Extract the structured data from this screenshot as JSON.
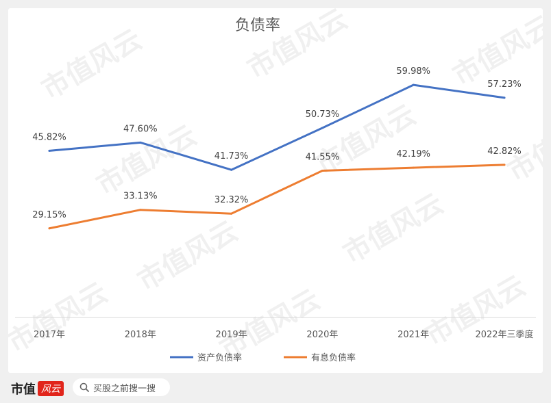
{
  "chart_data": {
    "type": "line",
    "title": "负债率",
    "categories": [
      "2017年",
      "2018年",
      "2019年",
      "2020年",
      "2021年",
      "2022年三季度"
    ],
    "series": [
      {
        "name": "资产负债率",
        "color": "#4472c4",
        "values": [
          45.82,
          47.6,
          41.73,
          50.73,
          59.98,
          57.23
        ],
        "labels": [
          "45.82%",
          "47.60%",
          "41.73%",
          "50.73%",
          "59.98%",
          "57.23%"
        ]
      },
      {
        "name": "有息负债率",
        "color": "#ed7d31",
        "values": [
          29.15,
          33.13,
          32.32,
          41.55,
          42.19,
          42.82
        ],
        "labels": [
          "29.15%",
          "33.13%",
          "32.32%",
          "41.55%",
          "42.19%",
          "42.82%"
        ]
      }
    ],
    "ylim": [
      10,
      65
    ],
    "y_axis_visible": false,
    "grid": false,
    "legend_position": "bottom"
  },
  "watermark": "市值风云",
  "footer": {
    "brand": "市值",
    "brand_seal": "风云",
    "search_icon": "search-icon",
    "search_text": "买股之前搜一搜"
  }
}
